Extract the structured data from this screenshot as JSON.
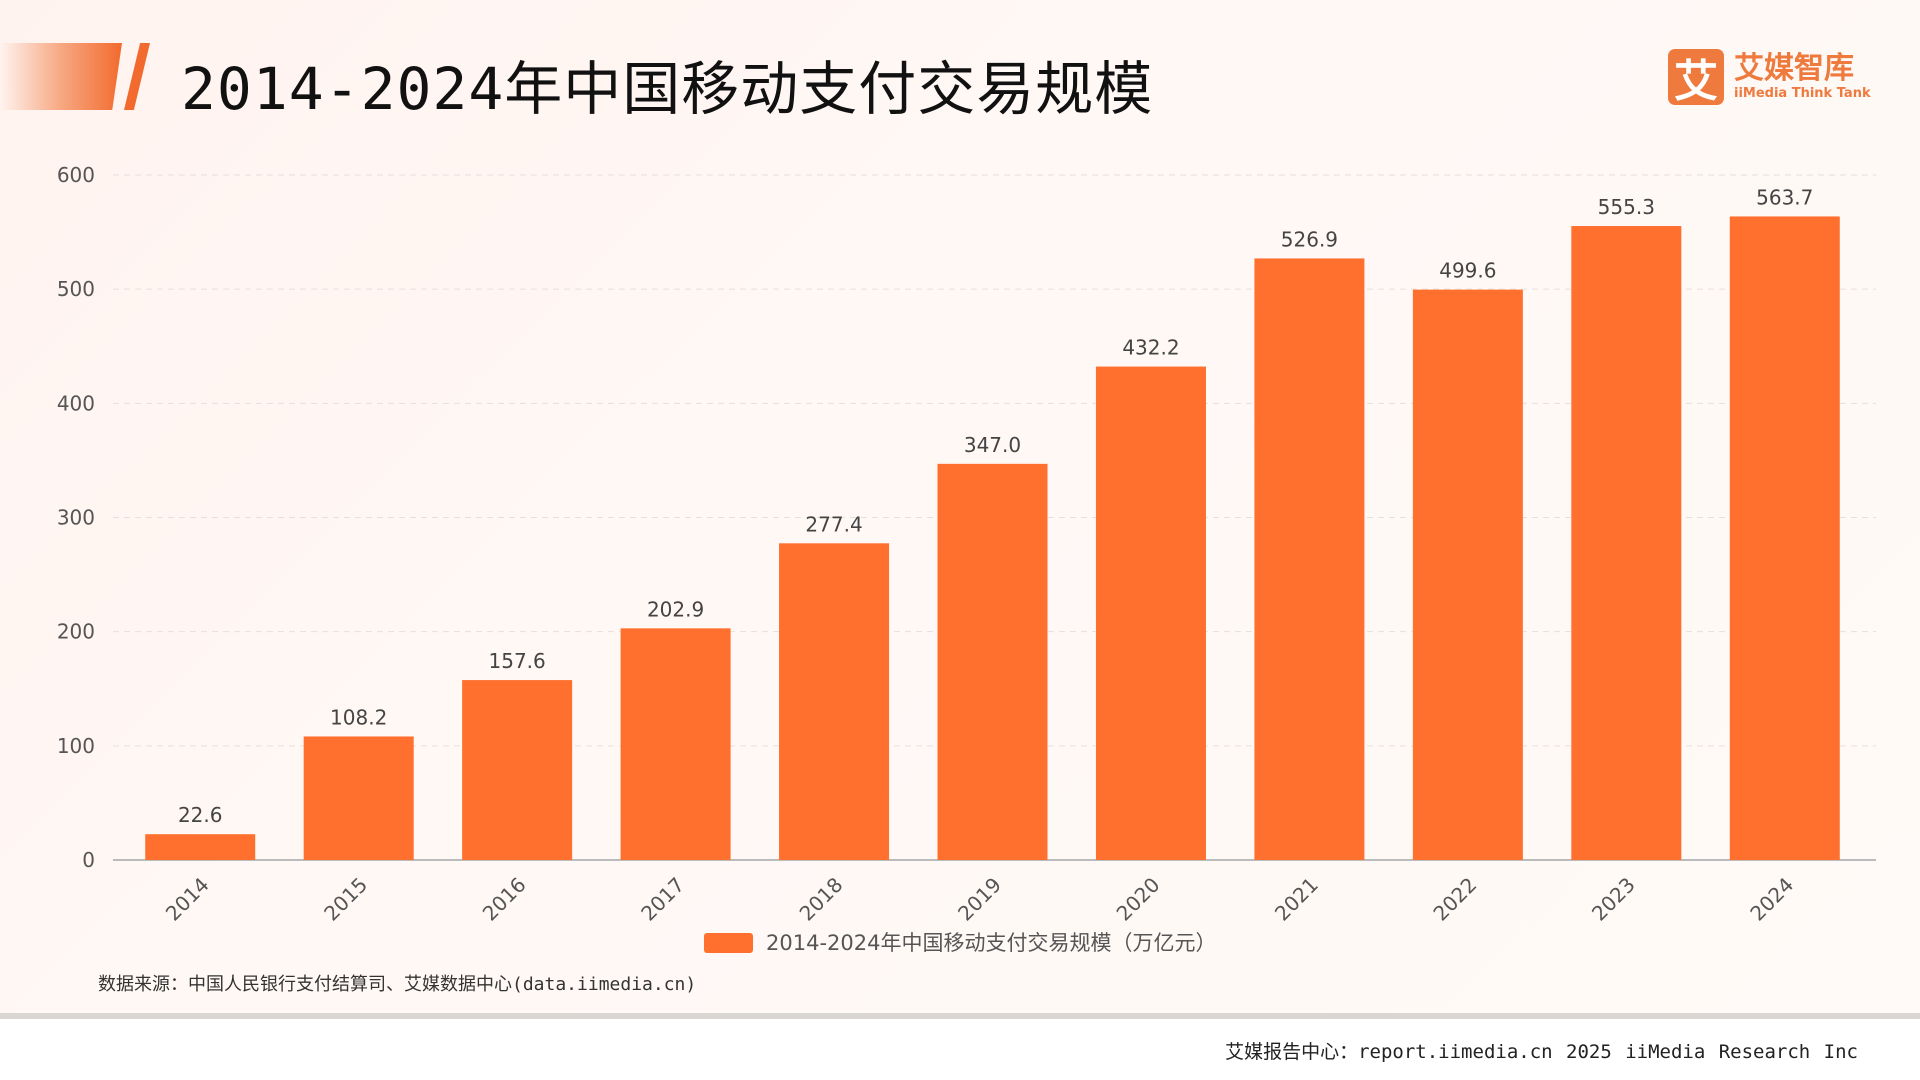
{
  "header": {
    "title": "2014-2024年中国移动支付交易规模"
  },
  "logo": {
    "mark": "艾",
    "name_cn": "艾媒智库",
    "name_en": "iiMedia Think Tank"
  },
  "chart_data": {
    "type": "bar",
    "title": "2014-2024年中国移动支付交易规模",
    "categories": [
      "2014",
      "2015",
      "2016",
      "2017",
      "2018",
      "2019",
      "2020",
      "2021",
      "2022",
      "2023",
      "2024"
    ],
    "series": [
      {
        "name": "2014-2024年中国移动支付交易规模（万亿元）",
        "values": [
          22.6,
          108.2,
          157.6,
          202.9,
          277.4,
          347.0,
          432.2,
          526.9,
          499.6,
          555.3,
          563.7
        ],
        "labels": [
          "22.6",
          "108.2",
          "157.6",
          "202.9",
          "277.4",
          "347.0",
          "432.2",
          "526.9",
          "499.6",
          "555.3",
          "563.7"
        ]
      }
    ],
    "ylim": [
      0,
      600
    ],
    "yticks": [
      0,
      100,
      200,
      300,
      400,
      500,
      600
    ],
    "grid": true,
    "legend_position": "bottom",
    "bar_color": "#ff6f2e"
  },
  "source": "数据来源：中国人民银行支付结算司、艾媒数据中心(data.iimedia.cn)",
  "footer": "艾媒报告中心：report.iimedia.cn   2025 iiMedia Research Inc"
}
